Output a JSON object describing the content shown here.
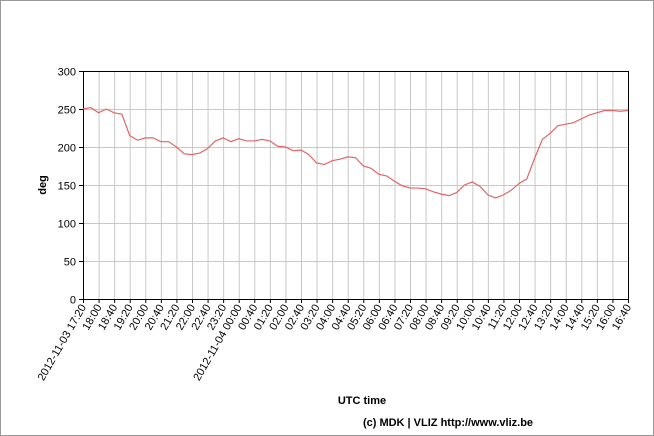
{
  "chart_data": {
    "type": "line",
    "y_label": "deg",
    "x_label": "UTC time",
    "footer": "(c) MDK | VLIZ http://www.vliz.be",
    "color": "#e06666",
    "grid": true,
    "ylim": [
      0,
      300
    ],
    "yticks": [
      0,
      50,
      100,
      150,
      200,
      250,
      300
    ],
    "xlim": [
      "2012-11-03 17:20",
      "2012-11-04 16:40"
    ],
    "xticks": [
      "2012-11-03 17:20",
      {
        "value": "2012-11-03 18:00",
        "label": "18:00"
      },
      {
        "value": "2012-11-03 18:40",
        "label": "18:40"
      },
      {
        "value": "2012-11-03 19:20",
        "label": "19:20"
      },
      {
        "value": "2012-11-03 20:00",
        "label": "20:00"
      },
      {
        "value": "2012-11-03 20:40",
        "label": "20:40"
      },
      {
        "value": "2012-11-03 21:20",
        "label": "21:20"
      },
      {
        "value": "2012-11-03 22:00",
        "label": "22:00"
      },
      {
        "value": "2012-11-03 22:40",
        "label": "22:40"
      },
      {
        "value": "2012-11-03 23:20",
        "label": "23:20"
      },
      "2012-11-04 00:00",
      {
        "value": "2012-11-04 00:40",
        "label": "00:40"
      },
      {
        "value": "2012-11-04 01:20",
        "label": "01:20"
      },
      {
        "value": "2012-11-04 02:00",
        "label": "02:00"
      },
      {
        "value": "2012-11-04 02:40",
        "label": "02:40"
      },
      {
        "value": "2012-11-04 03:20",
        "label": "03:20"
      },
      {
        "value": "2012-11-04 04:00",
        "label": "04:00"
      },
      {
        "value": "2012-11-04 04:40",
        "label": "04:40"
      },
      {
        "value": "2012-11-04 05:20",
        "label": "05:20"
      },
      {
        "value": "2012-11-04 06:00",
        "label": "06:00"
      },
      {
        "value": "2012-11-04 06:40",
        "label": "06:40"
      },
      {
        "value": "2012-11-04 07:20",
        "label": "07:20"
      },
      {
        "value": "2012-11-04 08:00",
        "label": "08:00"
      },
      {
        "value": "2012-11-04 08:40",
        "label": "08:40"
      },
      {
        "value": "2012-11-04 09:20",
        "label": "09:20"
      },
      {
        "value": "2012-11-04 10:00",
        "label": "10:00"
      },
      {
        "value": "2012-11-04 10:40",
        "label": "10:40"
      },
      {
        "value": "2012-11-04 11:20",
        "label": "11:20"
      },
      {
        "value": "2012-11-04 12:00",
        "label": "12:00"
      },
      {
        "value": "2012-11-04 12:40",
        "label": "12:40"
      },
      {
        "value": "2012-11-04 13:20",
        "label": "13:20"
      },
      {
        "value": "2012-11-04 14:00",
        "label": "14:00"
      },
      {
        "value": "2012-11-04 14:40",
        "label": "14:40"
      },
      {
        "value": "2012-11-04 15:20",
        "label": "15:20"
      },
      {
        "value": "2012-11-04 16:00",
        "label": "16:00"
      },
      {
        "value": "2012-11-04 16:40",
        "label": "16:40"
      }
    ],
    "x": [
      "2012-11-03 17:20",
      "2012-11-03 17:40",
      "2012-11-03 18:00",
      "2012-11-03 18:20",
      "2012-11-03 18:40",
      "2012-11-03 19:00",
      "2012-11-03 19:20",
      "2012-11-03 19:40",
      "2012-11-03 20:00",
      "2012-11-03 20:20",
      "2012-11-03 20:40",
      "2012-11-03 21:00",
      "2012-11-03 21:20",
      "2012-11-03 21:40",
      "2012-11-03 22:00",
      "2012-11-03 22:20",
      "2012-11-03 22:40",
      "2012-11-03 23:00",
      "2012-11-03 23:20",
      "2012-11-03 23:40",
      "2012-11-04 00:00",
      "2012-11-04 00:20",
      "2012-11-04 00:40",
      "2012-11-04 01:00",
      "2012-11-04 01:20",
      "2012-11-04 01:40",
      "2012-11-04 02:00",
      "2012-11-04 02:20",
      "2012-11-04 02:40",
      "2012-11-04 03:00",
      "2012-11-04 03:20",
      "2012-11-04 03:40",
      "2012-11-04 04:00",
      "2012-11-04 04:20",
      "2012-11-04 04:40",
      "2012-11-04 05:00",
      "2012-11-04 05:20",
      "2012-11-04 05:40",
      "2012-11-04 06:00",
      "2012-11-04 06:20",
      "2012-11-04 06:40",
      "2012-11-04 07:00",
      "2012-11-04 07:20",
      "2012-11-04 07:40",
      "2012-11-04 08:00",
      "2012-11-04 08:20",
      "2012-11-04 08:40",
      "2012-11-04 09:00",
      "2012-11-04 09:20",
      "2012-11-04 09:40",
      "2012-11-04 10:00",
      "2012-11-04 10:20",
      "2012-11-04 10:40",
      "2012-11-04 11:00",
      "2012-11-04 11:20",
      "2012-11-04 11:40",
      "2012-11-04 12:00",
      "2012-11-04 12:20",
      "2012-11-04 12:40",
      "2012-11-04 13:00",
      "2012-11-04 13:20",
      "2012-11-04 13:40",
      "2012-11-04 14:00",
      "2012-11-04 14:20",
      "2012-11-04 14:40",
      "2012-11-04 15:00",
      "2012-11-04 15:20",
      "2012-11-04 15:40",
      "2012-11-04 16:00",
      "2012-11-04 16:20",
      "2012-11-04 16:40"
    ],
    "values": [
      250,
      252,
      245,
      250,
      245,
      243,
      215,
      209,
      212,
      212,
      207,
      207,
      200,
      191,
      190,
      192,
      198,
      208,
      212,
      207,
      211,
      208,
      208,
      210,
      208,
      201,
      200,
      195,
      196,
      190,
      179,
      177,
      182,
      184,
      187,
      186,
      175,
      172,
      164,
      162,
      155,
      149,
      146,
      146,
      145,
      141,
      138,
      136,
      140,
      150,
      154,
      148,
      137,
      133,
      137,
      143,
      152,
      158,
      185,
      210,
      218,
      228,
      230,
      232,
      237,
      242,
      245,
      248,
      248,
      247,
      248
    ]
  }
}
